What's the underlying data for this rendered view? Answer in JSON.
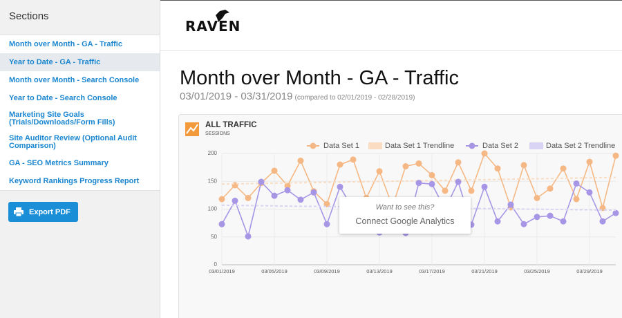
{
  "sidebar": {
    "title": "Sections",
    "items": [
      "Month over Month - GA - Traffic",
      "Year to Date - GA - Traffic",
      "Month over Month - Search Console",
      "Year to Date - Search Console",
      "Marketing Site Goals (Trials/Downloads/Form Fills)",
      "Site Auditor Review (Optional Audit Comparison)",
      "GA - SEO Metrics Summary",
      "Keyword Rankings Progress Report"
    ],
    "button": "Export PDF"
  },
  "header": {
    "logo": "RAVEN",
    "title": "Month over Month - GA - Traffic",
    "date_range": "03/01/2019 - 03/31/2019",
    "comparison": "(compared to 02/01/2019 - 02/28/2019)"
  },
  "overlay": {
    "prompt": "Want to see this?",
    "action": "Connect Google Analytics"
  },
  "chart_data": {
    "type": "line",
    "title": "ALL TRAFFIC",
    "subtitle": "SESSIONS",
    "categories": [
      "03/01/2019",
      null,
      null,
      null,
      "03/05/2019",
      null,
      null,
      null,
      "03/09/2019",
      null,
      null,
      null,
      "03/13/2019",
      null,
      null,
      null,
      "03/17/2019",
      null,
      null,
      null,
      "03/21/2019",
      null,
      null,
      null,
      "03/25/2019",
      null,
      null,
      null,
      "03/29/2019",
      null,
      null
    ],
    "series": [
      {
        "name": "Data Set 1",
        "color": "#f5b884",
        "values": [
          118,
          143,
          120,
          147,
          169,
          142,
          187,
          132,
          109,
          180,
          189,
          120,
          168,
          105,
          177,
          182,
          161,
          133,
          184,
          133,
          200,
          173,
          103,
          179,
          120,
          137,
          173,
          118,
          185,
          102,
          196
        ]
      },
      {
        "name": "Data Set 1 Trendline",
        "color": "#f9dcc2",
        "trendline": true,
        "values": [
          145,
          145.4,
          145.8,
          146.2,
          146.6,
          147,
          147.4,
          147.8,
          148.2,
          148.6,
          149,
          149.4,
          149.8,
          150.2,
          150.6,
          151,
          151.4,
          151.8,
          152.2,
          152.6,
          153,
          153.4,
          153.8,
          154.2,
          154.6,
          155,
          155.4,
          155.8,
          156.2,
          156.6,
          157
        ]
      },
      {
        "name": "Data Set 2",
        "color": "#a796e6",
        "values": [
          73,
          115,
          51,
          149,
          124,
          134,
          117,
          130,
          73,
          140,
          100,
          80,
          58,
          90,
          57,
          147,
          145,
          100,
          149,
          72,
          140,
          78,
          108,
          73,
          86,
          88,
          78,
          146,
          130,
          78,
          93
        ]
      },
      {
        "name": "Data Set 2 Trendline",
        "color": "#d9d4f4",
        "trendline": true,
        "values": [
          107,
          106.7,
          106.4,
          106.1,
          105.8,
          105.5,
          105.2,
          104.9,
          104.6,
          104.3,
          104,
          103.7,
          103.4,
          103.1,
          102.8,
          102.5,
          102.2,
          101.9,
          101.6,
          101.3,
          101,
          100.7,
          100.4,
          100.1,
          99.8,
          99.5,
          99.2,
          98.9,
          98.6,
          98.3,
          98
        ]
      }
    ],
    "ylim": [
      0,
      200
    ],
    "yticks": [
      0,
      50,
      100,
      150,
      200
    ],
    "grid": true,
    "legend": "top-right"
  }
}
